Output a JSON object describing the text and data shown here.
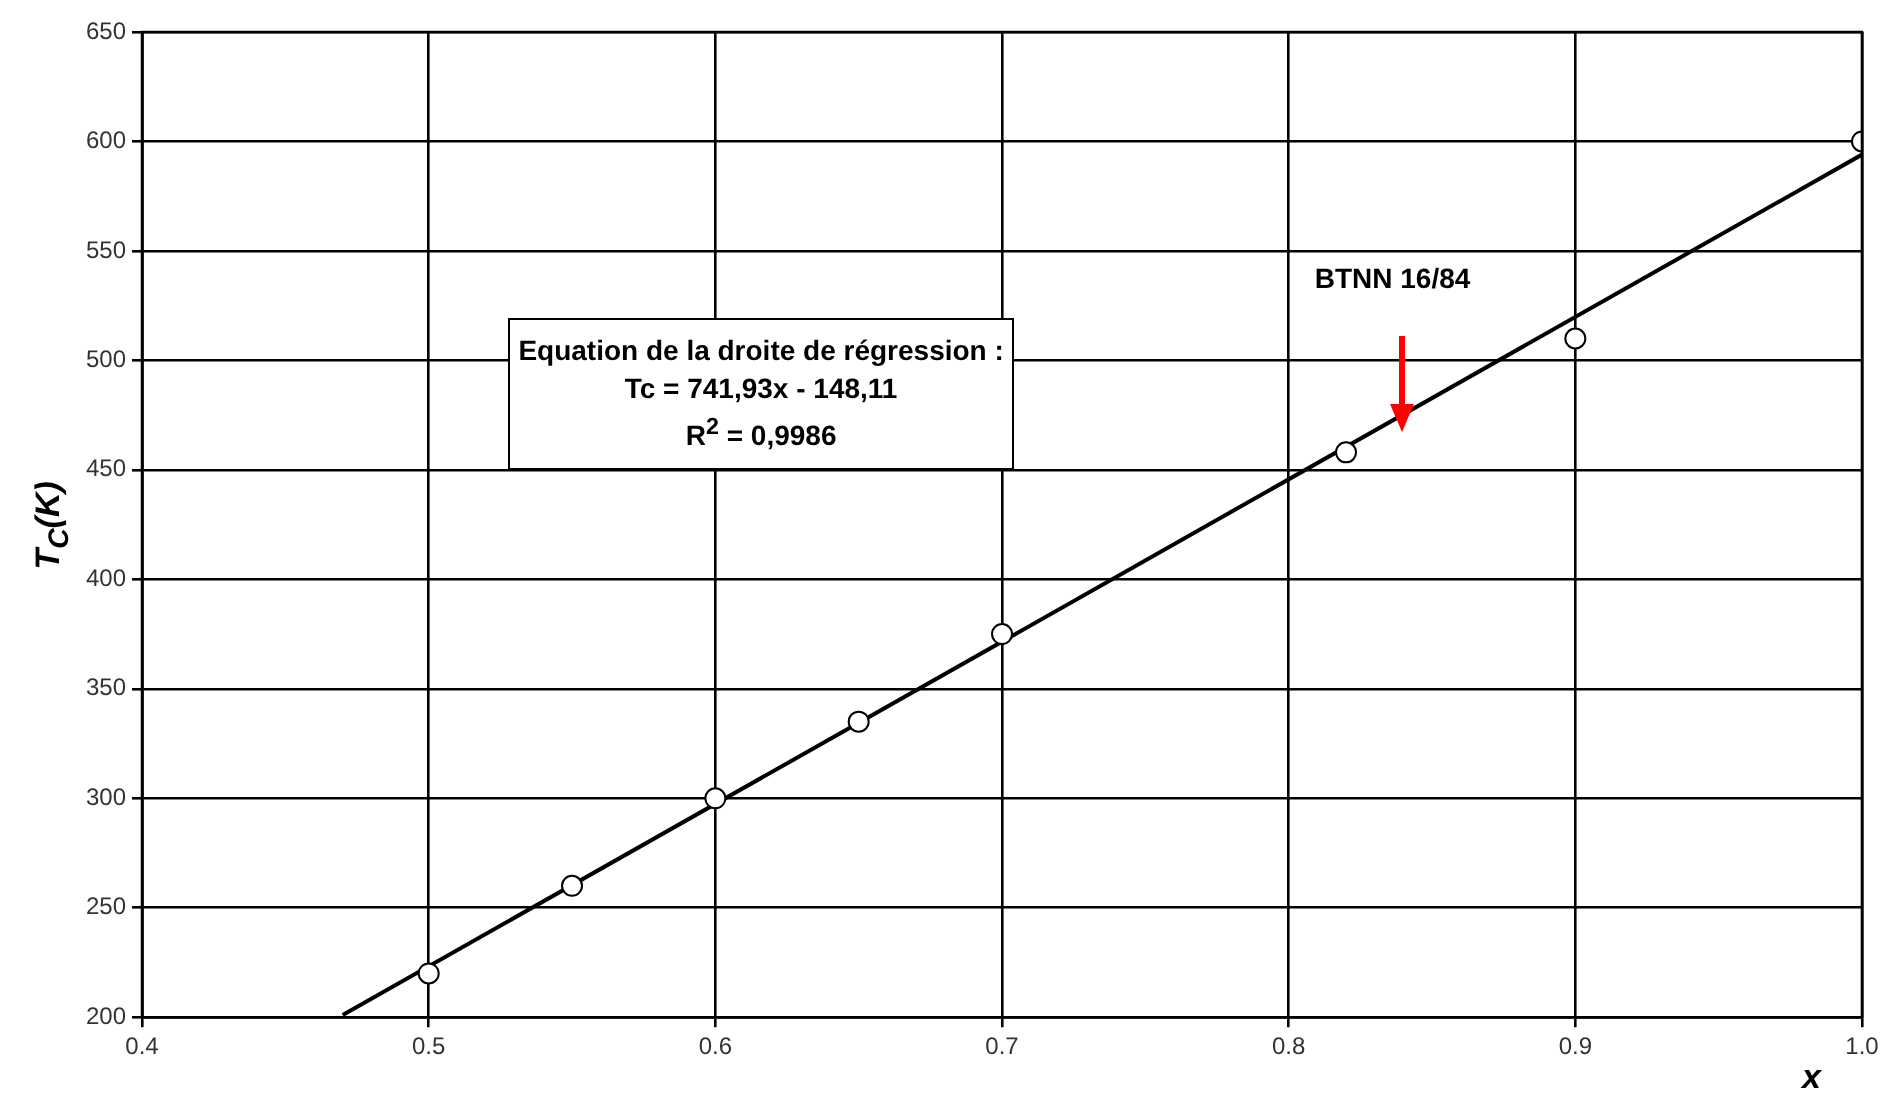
{
  "chart_data": {
    "type": "scatter",
    "xlabel": "x",
    "ylabel": "T$_{C}$(K)",
    "series": [
      {
        "color": "#000000",
        "marker": "circle",
        "x": [
          0.5,
          0.55,
          0.6,
          0.65,
          0.7,
          0.82,
          0.9,
          1.0
        ],
        "values": [
          220,
          260,
          300,
          335,
          375,
          458,
          510,
          600
        ]
      },
      {
        "type": "line",
        "color": "#000000",
        "marker": "none",
        "x": [
          0.47,
          1.0
        ],
        "values": [
          201,
          594
        ]
      }
    ],
    "annotations": [
      "Equation de la droite de régression :",
      "Tc = 741,93x - 148,11",
      "R$^{2}$ = 0,9986",
      "BTNN 16/84"
    ],
    "xlim": [
      0.4,
      1.0
    ],
    "xticks": [
      0.4,
      0.5,
      0.6,
      0.7,
      0.8,
      0.9,
      {
        "value": 1.0,
        "label": "1.0"
      }
    ],
    "ylim": [
      200,
      650
    ],
    "yticks": [
      200,
      250,
      300,
      350,
      400,
      450,
      500,
      550,
      600,
      650
    ],
    "grid": true,
    "legend": false
  }
}
